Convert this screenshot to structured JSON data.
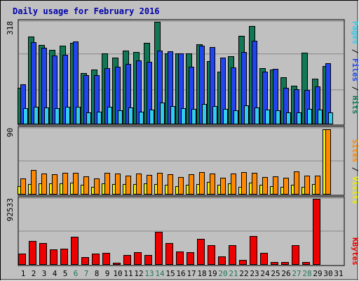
{
  "chart_data": {
    "title": "Daily usage for February 2016",
    "type": "bar",
    "days": [
      "1",
      "2",
      "3",
      "4",
      "5",
      "6",
      "7",
      "8",
      "9",
      "10",
      "11",
      "12",
      "13",
      "14",
      "15",
      "16",
      "17",
      "18",
      "19",
      "20",
      "21",
      "22",
      "23",
      "24",
      "25",
      "26",
      "27",
      "28",
      "29",
      "30",
      "31"
    ],
    "weekend_days": [
      "6",
      "7",
      "13",
      "14",
      "20",
      "21",
      "27",
      "28"
    ],
    "panels": [
      {
        "id": "hits",
        "max_label": "318",
        "ymax": 318,
        "legend": [
          {
            "text": "Pages",
            "color": "#33ccee"
          },
          {
            "text": " / ",
            "color": "#000000"
          },
          {
            "text": "Files",
            "color": "#2244ee"
          },
          {
            "text": " / ",
            "color": "#000000"
          },
          {
            "text": "Hits",
            "color": "#117755"
          }
        ],
        "series": [
          {
            "name": "Hits",
            "color": "#117755",
            "values": [
              112,
              270,
              243,
              229,
              242,
              251,
              157,
              168,
              218,
              205,
              226,
              222,
              250,
              316,
              218,
              217,
              218,
              246,
              194,
              162,
              209,
              273,
              302,
              172,
              167,
              143,
              117,
              220,
              140,
              179,
              0
            ]
          },
          {
            "name": "Files",
            "color": "#2244ee",
            "values": [
              121,
              253,
              236,
              212,
              214,
              254,
              151,
              151,
              171,
              177,
              186,
              195,
              192,
              226,
              224,
              218,
              177,
              242,
              263,
              223,
              175,
              222,
              257,
              161,
              170,
              111,
              106,
              105,
              115,
              187,
              0
            ]
          },
          {
            "name": "Pages",
            "color": "#33ccee",
            "values": [
              47,
              53,
              50,
              49,
              53,
              52,
              35,
              38,
              53,
              42,
              51,
              38,
              43,
              65,
              54,
              48,
              45,
              61,
              55,
              45,
              42,
              56,
              51,
              44,
              42,
              35,
              34,
              46,
              43,
              35,
              0
            ]
          }
        ]
      },
      {
        "id": "visits",
        "max_label": "90",
        "ymax": 90,
        "legend": [
          {
            "text": "Sites",
            "color": "#ff8800"
          },
          {
            "text": " / ",
            "color": "#000000"
          },
          {
            "text": "Visits",
            "color": "#eeee00"
          }
        ],
        "series": [
          {
            "name": "Visits",
            "color": "#eeee00",
            "values": [
              11,
              13,
              14,
              14,
              14,
              15,
              12,
              10,
              14,
              13,
              13,
              13,
              14,
              13,
              12,
              11,
              12,
              13,
              16,
              12,
              14,
              10,
              15,
              12,
              11,
              10,
              12,
              10,
              13,
              88,
              0
            ]
          },
          {
            "name": "Sites",
            "color": "#ff8800",
            "values": [
              21,
              33,
              28,
              27,
              29,
              29,
              24,
              21,
              29,
              28,
              25,
              28,
              26,
              29,
              27,
              23,
              27,
              30,
              28,
              22,
              28,
              30,
              29,
              23,
              24,
              22,
              31,
              25,
              25,
              88,
              0
            ]
          }
        ]
      },
      {
        "id": "kbytes",
        "max_label": "92533",
        "ymax": 92533,
        "legend": [
          {
            "text": "KBytes",
            "color": "#ee0000"
          }
        ],
        "series": [
          {
            "name": "KBytes",
            "color": "#ee0000",
            "values": [
              15000,
              32000,
              30000,
              21000,
              22000,
              38000,
              10000,
              15000,
              16000,
              2000,
              13000,
              17000,
              13000,
              45000,
              30000,
              18000,
              17000,
              35000,
              27000,
              11000,
              27000,
              6000,
              39000,
              16000,
              3000,
              3000,
              27000,
              3000,
              92000,
              0,
              0
            ]
          }
        ]
      }
    ]
  }
}
